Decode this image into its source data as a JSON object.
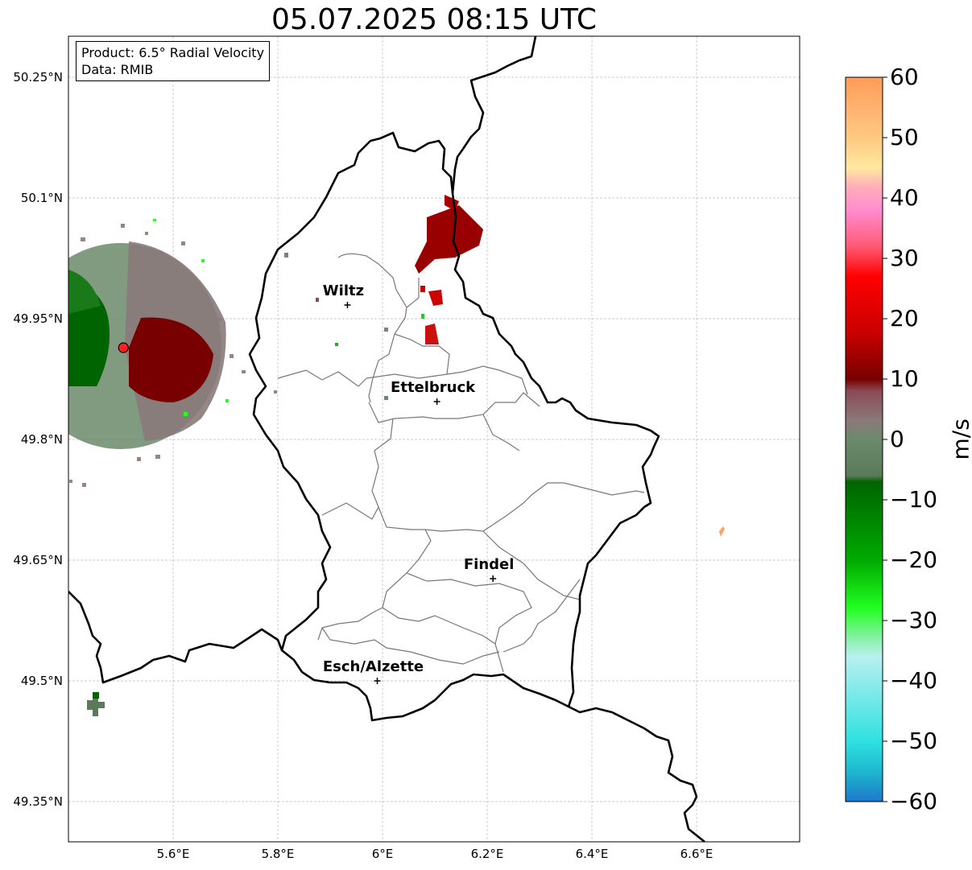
{
  "title": "05.07.2025 08:15 UTC",
  "info": {
    "product": "Product: 6.5° Radial Velocity",
    "data": "Data: RMIB"
  },
  "map": {
    "lon_range": [
      5.4,
      6.8
    ],
    "lat_range": [
      49.32,
      50.3
    ],
    "lat_ticks": [
      {
        "value": 50.25,
        "label": "50.25°N"
      },
      {
        "value": 50.1,
        "label": "50.1°N"
      },
      {
        "value": 49.95,
        "label": "49.95°N"
      },
      {
        "value": 49.8,
        "label": "49.8°N"
      },
      {
        "value": 49.65,
        "label": "49.65°N"
      },
      {
        "value": 49.5,
        "label": "49.5°N"
      },
      {
        "value": 49.35,
        "label": "49.35°N"
      }
    ],
    "lon_ticks": [
      {
        "value": 5.6,
        "label": "5.6°E"
      },
      {
        "value": 5.8,
        "label": "5.8°E"
      },
      {
        "value": 6.0,
        "label": "6°E"
      },
      {
        "value": 6.2,
        "label": "6.2°E"
      },
      {
        "value": 6.4,
        "label": "6.4°E"
      },
      {
        "value": 6.6,
        "label": "6.6°E"
      }
    ],
    "grid": true,
    "cities": [
      {
        "name": "Wiltz",
        "lon": 5.933,
        "lat": 49.967
      },
      {
        "name": "Ettelbruck",
        "lon": 6.104,
        "lat": 49.847
      },
      {
        "name": "Findel",
        "lon": 6.211,
        "lat": 49.627
      },
      {
        "name": "Esch/Alzette",
        "lon": 5.99,
        "lat": 49.5
      }
    ],
    "radar_site": {
      "lon": 5.505,
      "lat": 49.914
    }
  },
  "colorbar": {
    "unit": "m/s",
    "range": [
      -60,
      60
    ],
    "ticks": [
      {
        "value": 60,
        "label": "60"
      },
      {
        "value": 50,
        "label": "50"
      },
      {
        "value": 40,
        "label": "40"
      },
      {
        "value": 30,
        "label": "30"
      },
      {
        "value": 20,
        "label": "20"
      },
      {
        "value": 10,
        "label": "10"
      },
      {
        "value": 0,
        "label": "0"
      },
      {
        "value": -10,
        "label": "−10"
      },
      {
        "value": -20,
        "label": "−20"
      },
      {
        "value": -30,
        "label": "−30"
      },
      {
        "value": -40,
        "label": "−40"
      },
      {
        "value": -50,
        "label": "−50"
      },
      {
        "value": -60,
        "label": "−60"
      }
    ],
    "color_stops": [
      {
        "value": 60,
        "color": "#ff9c5a"
      },
      {
        "value": 50,
        "color": "#ffc882"
      },
      {
        "value": 45,
        "color": "#ffe9a0"
      },
      {
        "value": 42,
        "color": "#ffb0b8"
      },
      {
        "value": 38,
        "color": "#ff8ccf"
      },
      {
        "value": 32,
        "color": "#ff5a74"
      },
      {
        "value": 27,
        "color": "#ff0000"
      },
      {
        "value": 18,
        "color": "#cc0000"
      },
      {
        "value": 10,
        "color": "#780000"
      },
      {
        "value": 8,
        "color": "#8a4a55"
      },
      {
        "value": 3,
        "color": "#8a7a7a"
      },
      {
        "value": 0,
        "color": "#6b8a6b"
      },
      {
        "value": -6,
        "color": "#5a7a5a"
      },
      {
        "value": -7,
        "color": "#006400"
      },
      {
        "value": -20,
        "color": "#00aa00"
      },
      {
        "value": -28,
        "color": "#22ff22"
      },
      {
        "value": -33,
        "color": "#8af0a8"
      },
      {
        "value": -36,
        "color": "#b8f0f0"
      },
      {
        "value": -50,
        "color": "#30e0e0"
      },
      {
        "value": -55,
        "color": "#1eb8d0"
      },
      {
        "value": -60,
        "color": "#1e78c8"
      }
    ]
  }
}
